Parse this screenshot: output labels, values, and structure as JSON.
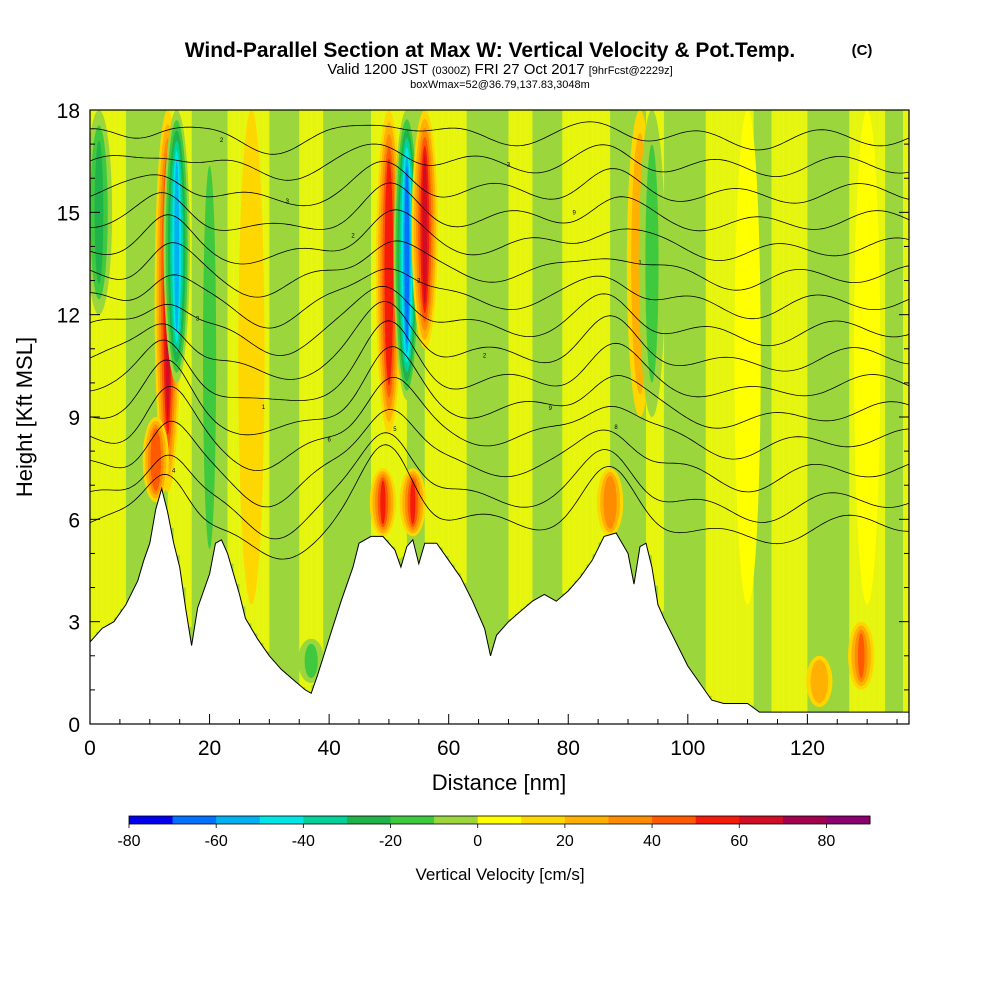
{
  "chart_data": {
    "type": "heatmap",
    "title": "Wind-Parallel Section at Max W: Vertical Velocity & Pot.Temp.",
    "title_mark": "(C)",
    "subtitle_parts": [
      {
        "text": "Valid 1200 JST ",
        "size": "normal"
      },
      {
        "text": "(0300Z)",
        "size": "small"
      },
      {
        "text": " FRI 27 Oct 2017 ",
        "size": "normal"
      },
      {
        "text": "[9hrFcst@2229z]",
        "size": "small"
      }
    ],
    "note": "boxWmax=52@36.79,137.83,3048m",
    "xlabel": "Distance [nm]",
    "ylabel": "Height [Kft MSL]",
    "xlim": [
      0,
      137
    ],
    "ylim": [
      0,
      18
    ],
    "x_ticks": [
      "0",
      "20",
      "40",
      "60",
      "80",
      "100",
      "120"
    ],
    "y_ticks": [
      "0",
      "3",
      "6",
      "9",
      "12",
      "15",
      "18"
    ],
    "colorbar": {
      "label": "Vertical Velocity [cm/s]",
      "min": -80,
      "max": 90,
      "step": 10,
      "tick_labels": [
        "-80",
        "-60",
        "-40",
        "-20",
        "0",
        "20",
        "40",
        "60",
        "80"
      ],
      "colors": [
        "#0000ee",
        "#0072ff",
        "#00b0f0",
        "#00e6e6",
        "#00d29a",
        "#1fb34a",
        "#3fc93f",
        "#9ad63c",
        "#ffff00",
        "#ffd700",
        "#ffb000",
        "#ff8c00",
        "#ff5a00",
        "#f51b0a",
        "#d10c25",
        "#a30050",
        "#8a0070"
      ]
    },
    "terrain_profile": [
      [
        0,
        2.4
      ],
      [
        2,
        2.8
      ],
      [
        4,
        3.0
      ],
      [
        6,
        3.5
      ],
      [
        8,
        4.2
      ],
      [
        9,
        4.8
      ],
      [
        10,
        5.3
      ],
      [
        11,
        6.3
      ],
      [
        12,
        6.9
      ],
      [
        13,
        6.2
      ],
      [
        14,
        5.3
      ],
      [
        15,
        4.6
      ],
      [
        16,
        3.4
      ],
      [
        17,
        2.3
      ],
      [
        18,
        3.4
      ],
      [
        20,
        4.4
      ],
      [
        21,
        5.3
      ],
      [
        22,
        5.4
      ],
      [
        23,
        5.0
      ],
      [
        24,
        4.4
      ],
      [
        25,
        3.8
      ],
      [
        26,
        3.1
      ],
      [
        28,
        2.5
      ],
      [
        30,
        2.0
      ],
      [
        32,
        1.6
      ],
      [
        34,
        1.3
      ],
      [
        36,
        1.0
      ],
      [
        37,
        0.9
      ],
      [
        38,
        1.4
      ],
      [
        40,
        2.5
      ],
      [
        42,
        3.6
      ],
      [
        44,
        4.6
      ],
      [
        45,
        5.3
      ],
      [
        47,
        5.5
      ],
      [
        49,
        5.5
      ],
      [
        51,
        5.1
      ],
      [
        52,
        4.6
      ],
      [
        53,
        5.2
      ],
      [
        54,
        5.4
      ],
      [
        55,
        4.7
      ],
      [
        56,
        5.3
      ],
      [
        58,
        5.3
      ],
      [
        60,
        4.8
      ],
      [
        62,
        4.3
      ],
      [
        64,
        3.6
      ],
      [
        66,
        2.8
      ],
      [
        67,
        2.0
      ],
      [
        68,
        2.6
      ],
      [
        70,
        3.0
      ],
      [
        72,
        3.3
      ],
      [
        74,
        3.6
      ],
      [
        76,
        3.8
      ],
      [
        78,
        3.6
      ],
      [
        80,
        3.9
      ],
      [
        82,
        4.3
      ],
      [
        84,
        4.8
      ],
      [
        86,
        5.5
      ],
      [
        88,
        5.6
      ],
      [
        89,
        5.3
      ],
      [
        90,
        5.0
      ],
      [
        91,
        4.1
      ],
      [
        92,
        5.2
      ],
      [
        93,
        5.3
      ],
      [
        94,
        4.6
      ],
      [
        95,
        3.5
      ],
      [
        96,
        3.1
      ],
      [
        98,
        2.4
      ],
      [
        100,
        1.7
      ],
      [
        102,
        1.2
      ],
      [
        104,
        0.7
      ],
      [
        106,
        0.6
      ],
      [
        110,
        0.6
      ],
      [
        112,
        0.35
      ],
      [
        137,
        0.35
      ]
    ],
    "vertical_velocity_features": [
      {
        "x": 13,
        "z_min": 6.8,
        "z_max": 18,
        "w": 60
      },
      {
        "x": 14.5,
        "z_min": 10,
        "z_max": 18,
        "w": -60
      },
      {
        "x": 11,
        "z_min": 6.5,
        "z_max": 9,
        "w": 45
      },
      {
        "x": 1.5,
        "z_min": 12,
        "z_max": 18,
        "w": -30
      },
      {
        "x": 20,
        "z_min": 3.5,
        "z_max": 18,
        "w": -20
      },
      {
        "x": 27,
        "z_min": 3.5,
        "z_max": 18,
        "w": 15
      },
      {
        "x": 37,
        "z_min": 1.2,
        "z_max": 2.5,
        "w": -20
      },
      {
        "x": 49,
        "z_min": 5.5,
        "z_max": 7.5,
        "w": 50
      },
      {
        "x": 54,
        "z_min": 5.5,
        "z_max": 7.5,
        "w": 50
      },
      {
        "x": 50,
        "z_min": 8.5,
        "z_max": 18,
        "w": 55
      },
      {
        "x": 53,
        "z_min": 9.5,
        "z_max": 18,
        "w": -65
      },
      {
        "x": 56,
        "z_min": 11,
        "z_max": 18,
        "w": 60
      },
      {
        "x": 87,
        "z_min": 5.5,
        "z_max": 7.5,
        "w": 35
      },
      {
        "x": 92,
        "z_min": 9,
        "z_max": 18,
        "w": 25
      },
      {
        "x": 94,
        "z_min": 9,
        "z_max": 18,
        "w": -15
      },
      {
        "x": 122,
        "z_min": 0.5,
        "z_max": 2.0,
        "w": 25
      },
      {
        "x": 129,
        "z_min": 1.0,
        "z_max": 3.0,
        "w": 40
      },
      {
        "x": 110,
        "z_min": 3.5,
        "z_max": 18,
        "w": 3
      },
      {
        "x": 130,
        "z_min": 3.5,
        "z_max": 18,
        "w": 0
      }
    ],
    "theta_levels": [
      {
        "label": "4",
        "base": 5.9
      },
      {
        "label": "5",
        "base": 6.6
      },
      {
        "label": "8",
        "base": 7.5
      },
      {
        "label": "6",
        "base": 8.4
      },
      {
        "label": "9",
        "base": 9.2
      },
      {
        "label": "1",
        "base": 10.0
      },
      {
        "label": "2",
        "base": 10.8
      },
      {
        "label": "3",
        "base": 11.6
      },
      {
        "label": "2",
        "base": 12.4
      },
      {
        "label": "1",
        "base": 13.2
      },
      {
        "label": "2",
        "base": 14.0
      },
      {
        "label": "9",
        "base": 14.8
      },
      {
        "label": "3",
        "base": 15.6
      },
      {
        "label": "3",
        "base": 16.4
      },
      {
        "label": "2",
        "base": 17.2
      }
    ]
  }
}
